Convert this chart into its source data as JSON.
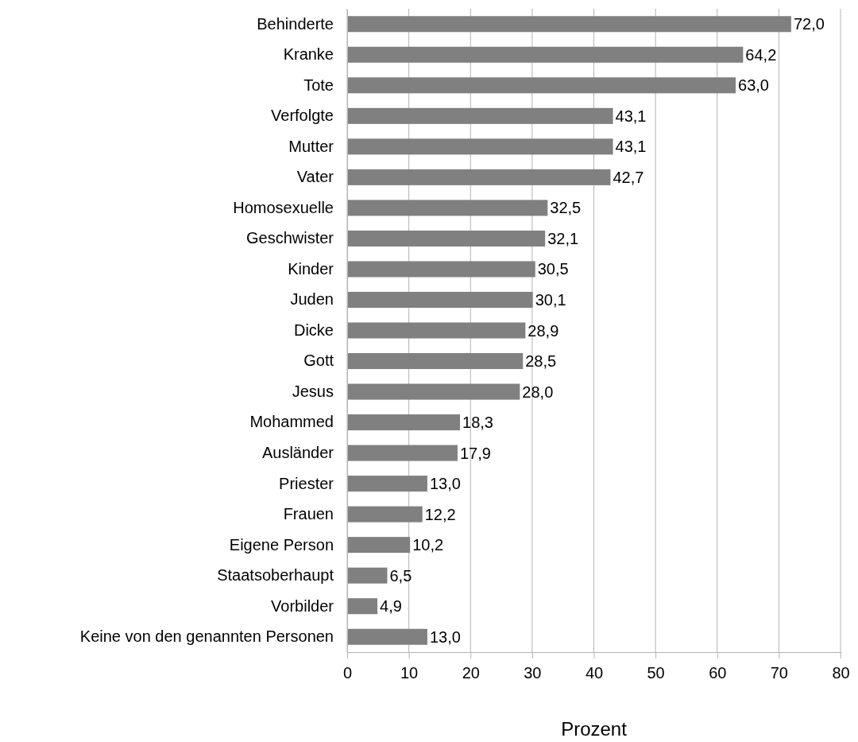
{
  "chart_data": {
    "type": "bar",
    "orientation": "horizontal",
    "xlabel": "Prozent",
    "categories": [
      "Behinderte",
      "Kranke",
      "Tote",
      "Verfolgte",
      "Mutter",
      "Vater",
      "Homosexuelle",
      "Geschwister",
      "Kinder",
      "Juden",
      "Dicke",
      "Gott",
      "Jesus",
      "Mohammed",
      "Ausländer",
      "Priester",
      "Frauen",
      "Eigene Person",
      "Staatsoberhaupt",
      "Vorbilder",
      "Keine von den genannten Personen"
    ],
    "values": [
      72.0,
      64.2,
      63.0,
      43.1,
      43.1,
      42.7,
      32.5,
      32.1,
      30.5,
      30.1,
      28.9,
      28.5,
      28.0,
      18.3,
      17.9,
      13.0,
      12.2,
      10.2,
      6.5,
      4.9,
      13.0
    ],
    "value_labels": [
      "72,0",
      "64,2",
      "63,0",
      "43,1",
      "43,1",
      "42,7",
      "32,5",
      "32,1",
      "30,5",
      "30,1",
      "28,9",
      "28,5",
      "28,0",
      "18,3",
      "17,9",
      "13,0",
      "12,2",
      "10,2",
      "6,5",
      "4,9",
      "13,0"
    ],
    "color": "#808080",
    "xlim": [
      0,
      80
    ],
    "xticks": [
      0,
      10,
      20,
      30,
      40,
      50,
      60,
      70,
      80
    ],
    "grid": "x"
  }
}
